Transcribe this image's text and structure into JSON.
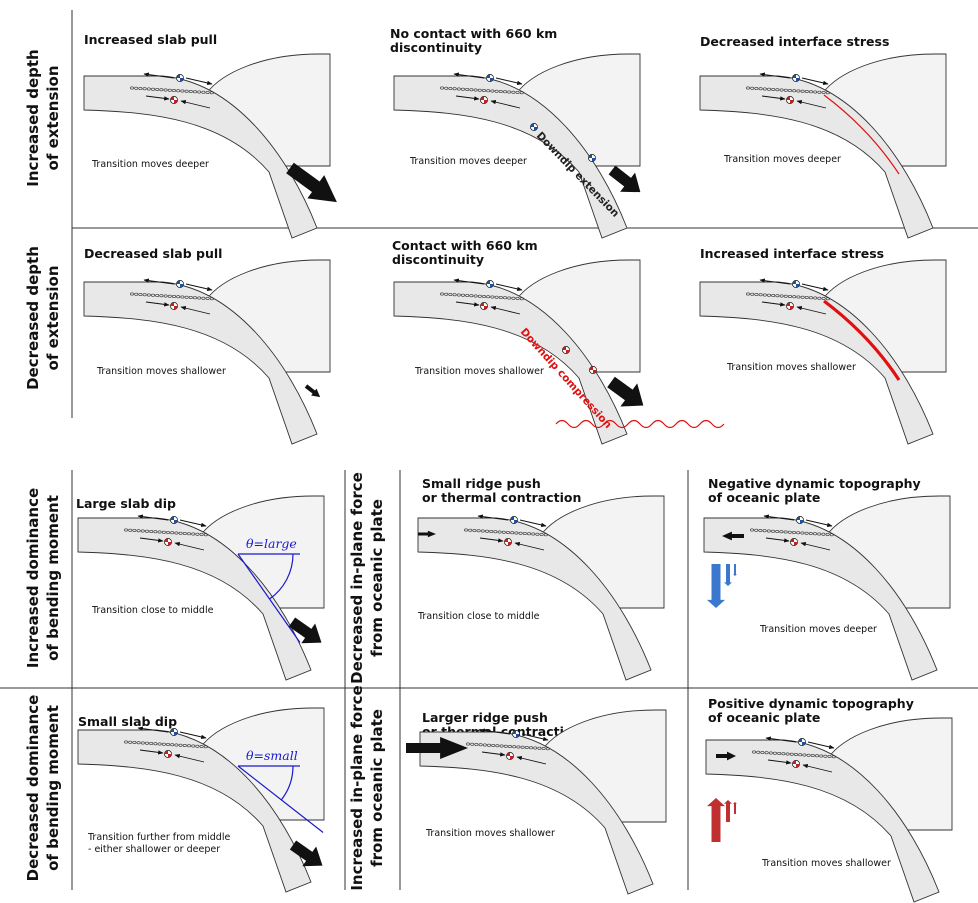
{
  "rows": {
    "r1": [
      "Increased depth",
      "of extension"
    ],
    "r2": [
      "Decreased depth",
      "of extension"
    ],
    "r3": [
      "Increased dominance",
      "of bending moment"
    ],
    "r4": [
      "Decreased dominance",
      "of bending moment"
    ],
    "r5": [
      "Decreased in-plane force",
      "from oceanic plate"
    ],
    "r6": [
      "Increased in-plane force",
      "from oceanic plate"
    ]
  },
  "panels": {
    "p1": {
      "title": [
        "Increased slab pull"
      ],
      "caption": [
        "Transition moves deeper"
      ]
    },
    "p2": {
      "title": [
        "No contact with 660 km",
        "discontinuity"
      ],
      "caption": [
        "Transition moves deeper"
      ],
      "label": "Downdip extension"
    },
    "p3": {
      "title": [
        "Decreased interface stress"
      ],
      "caption": [
        "Transition moves deeper"
      ]
    },
    "p4": {
      "title": [
        "Decreased slab pull"
      ],
      "caption": [
        "Transition moves shallower"
      ]
    },
    "p5": {
      "title": [
        "Contact with 660 km",
        "discontinuity"
      ],
      "caption": [
        "Transition moves shallower"
      ],
      "label": "Downdip compression"
    },
    "p6": {
      "title": [
        "Increased interface stress"
      ],
      "caption": [
        "Transition moves shallower"
      ]
    },
    "p7": {
      "title": [
        "Large slab dip"
      ],
      "caption": [
        "Transition close to middle"
      ],
      "theta": "θ=large"
    },
    "p8": {
      "title": [
        "Small ridge push",
        "or thermal contraction"
      ],
      "caption": [
        "Transition close to middle"
      ]
    },
    "p9": {
      "title": [
        "Negative dynamic topography",
        "of oceanic plate"
      ],
      "caption": [
        "Transition moves deeper"
      ]
    },
    "p10": {
      "title": [
        "Small slab dip"
      ],
      "caption": [
        "Transition further from middle",
        "- either shallower or deeper"
      ],
      "theta": "θ=small"
    },
    "p11": {
      "title": [
        "Larger ridge push",
        "or thermal contraction"
      ],
      "caption": [
        "Transition moves shallower"
      ]
    },
    "p12": {
      "title": [
        "Positive dynamic topography",
        "of oceanic plate"
      ],
      "caption": [
        "Transition moves shallower"
      ]
    }
  },
  "colors": {
    "interface_red": "#e01010",
    "theta_blue": "#1a1acc",
    "downwelling_blue": "#3a78d0",
    "upwelling_red": "#c03030",
    "extension_beachball": "#1f4fa0",
    "compression_beachball": "#c42020"
  }
}
